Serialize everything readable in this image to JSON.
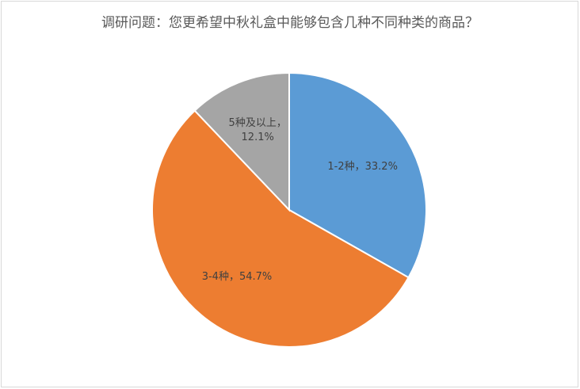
{
  "chart_data": {
    "type": "pie",
    "title": "调研问题：您更希望中秋礼盒中能够包含几种不同种类的商品？",
    "categories": [
      "1-2种",
      "3-4种",
      "5种及以上"
    ],
    "values": [
      33.2,
      54.7,
      12.1
    ],
    "value_labels": [
      "1-2种，33.2%",
      "3-4种，54.7%",
      "5种及以上，\n12.1%"
    ],
    "colors": [
      "#5b9bd5",
      "#ed7d31",
      "#a5a5a5"
    ]
  }
}
